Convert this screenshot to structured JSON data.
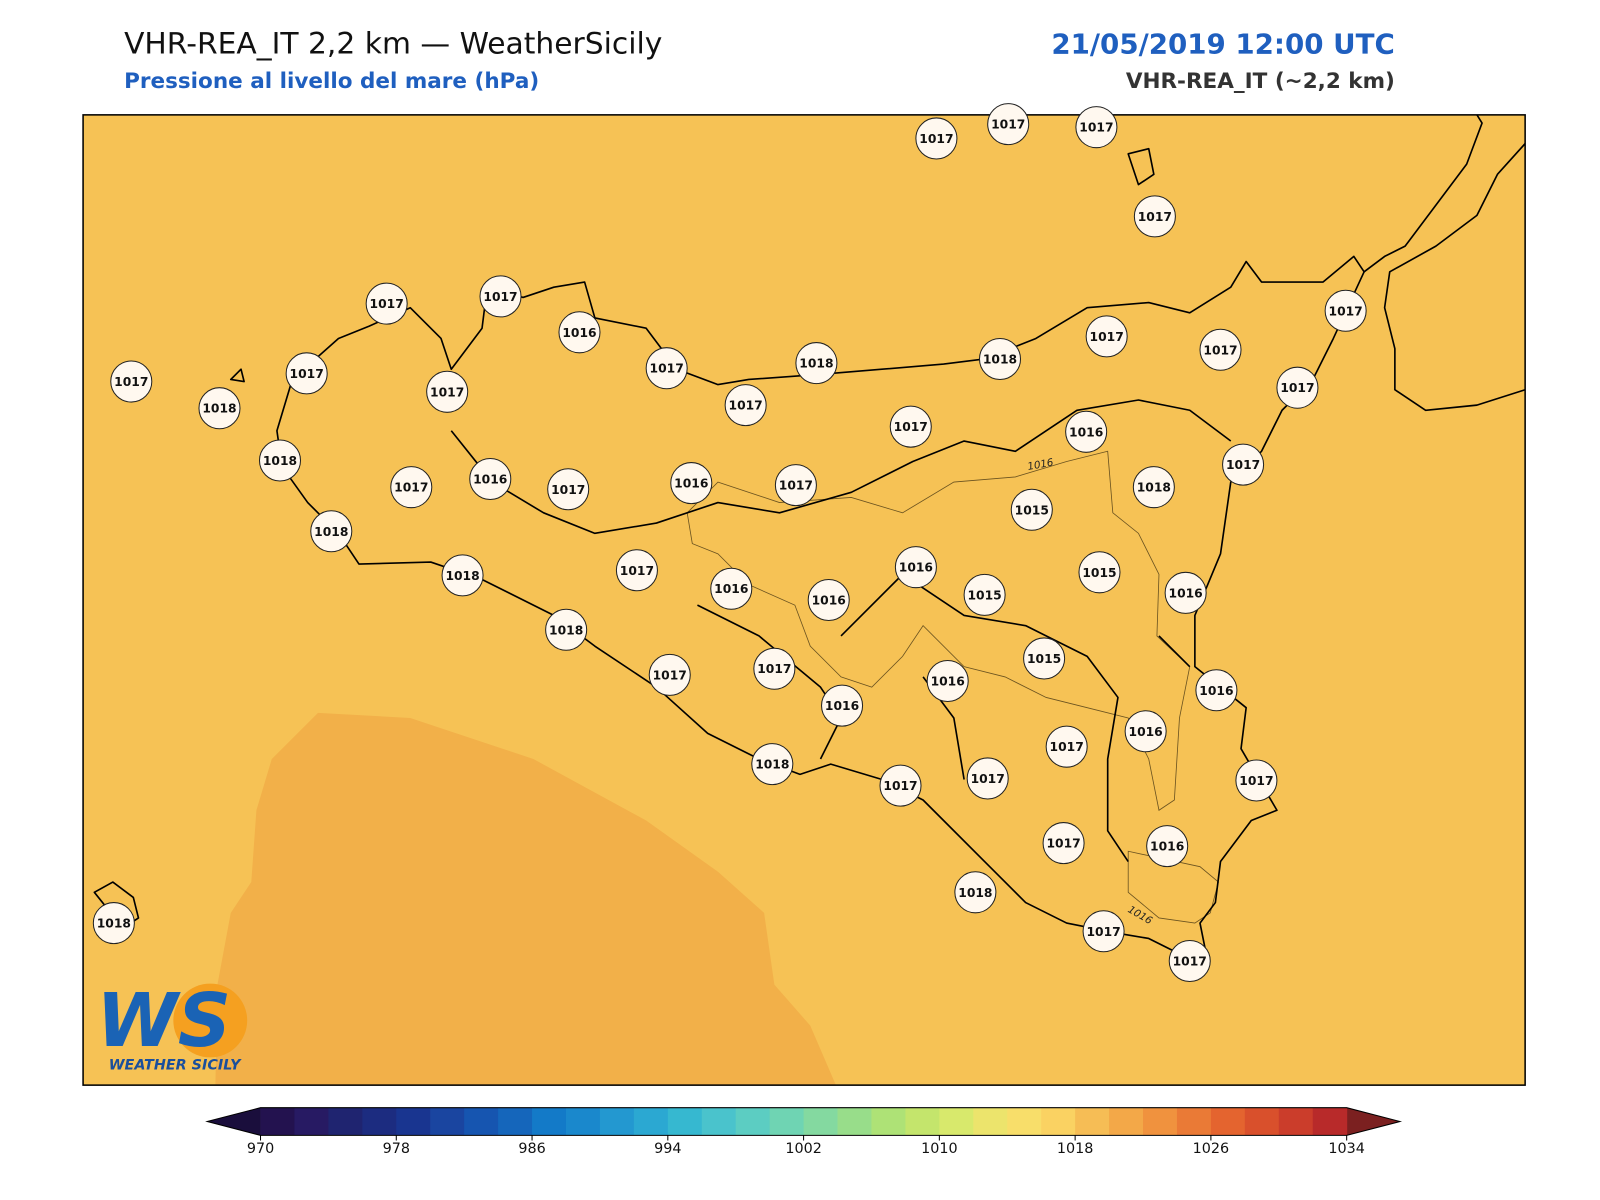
{
  "header": {
    "title": "VHR-REA_IT 2,2 km — WeatherSicily",
    "subtitle": "Pressione al livello del mare (hPa)",
    "date": "21/05/2019 12:00 UTC",
    "model": "VHR-REA_IT (~2,2 km)"
  },
  "stations": [
    1017,
    1017,
    1017,
    1017,
    1017,
    1017,
    1016,
    1017,
    1018,
    1018,
    1017,
    1017,
    1017,
    1017,
    1018,
    1017,
    1017,
    1017,
    1017,
    1016,
    1017,
    1018,
    1017,
    1016,
    1017,
    1016,
    1017,
    1015,
    1018,
    1017,
    1018,
    1018,
    1017,
    1016,
    1016,
    1016,
    1015,
    1015,
    1016,
    1018,
    1017,
    1017,
    1015,
    1016,
    1016,
    1016,
    1016,
    1017,
    1018,
    1017,
    1017,
    1017,
    1017,
    1016,
    1018,
    1017,
    1017,
    1018
  ],
  "contour_labels": [
    "1016",
    "1016"
  ],
  "logo": {
    "letters": "WS",
    "name": "WEATHER SICILY"
  },
  "colorbar": {
    "lim": [
      970,
      1034
    ],
    "ticks": [
      970,
      978,
      986,
      994,
      1002,
      1010,
      1018,
      1026,
      1034
    ],
    "colors": [
      "#23124f",
      "#271a63",
      "#1f2470",
      "#1c2c80",
      "#193590",
      "#1a45a0",
      "#1655b0",
      "#1566bb",
      "#137ac8",
      "#1a88cc",
      "#2398d0",
      "#2ba8d2",
      "#36b8d0",
      "#4ac3cc",
      "#5ccdc2",
      "#6fd4b3",
      "#84d9a0",
      "#98dd8a",
      "#aee276",
      "#c4e56c",
      "#d8e96c",
      "#ece46c",
      "#f8de6a",
      "#fad262",
      "#f6bd55",
      "#f3a848",
      "#f0923e",
      "#ea7a36",
      "#e4642f",
      "#d9502c",
      "#cb3d2b",
      "#b82a2a"
    ],
    "under_color": "#1a0e3c",
    "over_color": "#7b2020"
  }
}
